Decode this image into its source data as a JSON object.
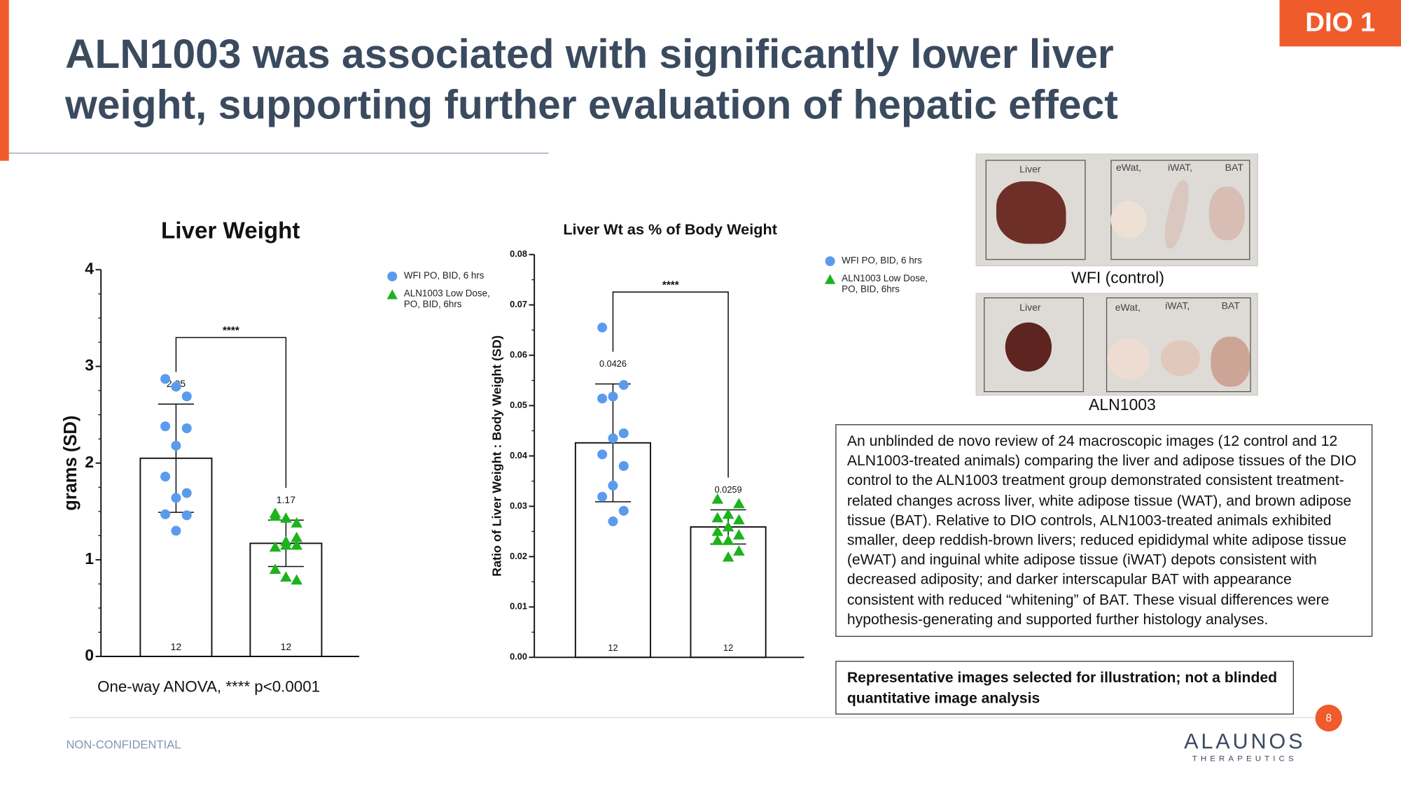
{
  "tag": "DIO 1",
  "title": [
    "ALN1003 was associated with significantly lower liver",
    "weight, supporting further evaluation of hepatic effect"
  ],
  "chart_data": [
    {
      "type": "bar",
      "title": "Liver Weight",
      "y_label": "grams  (SD)",
      "ylim": [
        0,
        4
      ],
      "yticks": [
        0,
        1,
        2,
        3,
        4
      ],
      "minor_ticks": 3,
      "annotation": "****",
      "footnote": "One-way ANOVA, **** p<0.0001",
      "series": [
        {
          "name": "WFI PO, BID, 6 hrs",
          "color": "#5b9bee",
          "marker": "circle",
          "values": [
            2.05
          ],
          "error": [
            0.56
          ],
          "n": [
            12
          ],
          "points": [
            2.87,
            2.69,
            2.79,
            2.38,
            2.36,
            2.18,
            1.86,
            1.69,
            1.64,
            1.47,
            1.46,
            1.3
          ]
        },
        {
          "name": "ALN1003 Low Dose, PO, BID, 6hrs",
          "color": "#1db31d",
          "marker": "triangle",
          "values": [
            1.17
          ],
          "error": [
            0.24
          ],
          "n": [
            12
          ],
          "points": [
            1.45,
            1.38,
            1.43,
            1.48,
            1.23,
            1.19,
            1.13,
            1.15,
            1.15,
            0.9,
            0.79,
            0.82
          ]
        }
      ]
    },
    {
      "type": "bar",
      "title": "Liver Wt as % of Body Weight",
      "y_label": "Ratio of Liver Weight  : Body Weight (SD)",
      "ylim": [
        0,
        0.08
      ],
      "yticks": [
        {
          "value": 0,
          "label": "0.00"
        },
        0.01,
        0.02,
        0.03,
        0.04,
        0.05,
        0.06,
        0.07,
        0.08
      ],
      "minor_ticks": 1,
      "annotation": "****",
      "series": [
        {
          "name": "WFI PO, BID, 6 hrs",
          "color": "#5b9bee",
          "marker": "circle",
          "values": [
            0.0426
          ],
          "error": [
            0.0117
          ],
          "n": [
            12
          ],
          "points": [
            0.0655,
            0.0541,
            0.0518,
            0.0514,
            0.0445,
            0.0435,
            0.0403,
            0.038,
            0.0341,
            0.0319,
            0.0291,
            0.027
          ]
        },
        {
          "name": "ALN1003 Low Dose, PO, BID, 6hrs",
          "color": "#1db31d",
          "marker": "triangle",
          "values": [
            0.0259
          ],
          "error": [
            0.0034
          ],
          "n": [
            12
          ],
          "points": [
            0.0314,
            0.0305,
            0.0284,
            0.0277,
            0.0273,
            0.0259,
            0.025,
            0.0243,
            0.0232,
            0.0232,
            0.0211,
            0.0199
          ]
        }
      ]
    }
  ],
  "images": [
    {
      "caption": "WFI (control)",
      "labels": [
        "Liver",
        "eWat,",
        "iWAT,",
        "BAT"
      ]
    },
    {
      "caption": "ALN1003",
      "labels": [
        "Liver",
        "eWat,",
        "iWAT,",
        "BAT"
      ]
    }
  ],
  "summary": "An unblinded de novo review of 24 macroscopic images (12 control and 12 ALN1003-treated animals) comparing the liver and adipose tissues of the DIO control to the ALN1003 treatment group demonstrated consistent treatment-related changes across liver, white adipose tissue (WAT), and brown adipose tissue (BAT). Relative to DIO controls, ALN1003-treated animals exhibited smaller, deep reddish-brown livers; reduced epididymal white adipose tissue (eWAT) and inguinal white adipose tissue (iWAT) depots consistent with decreased adiposity; and darker interscapular BAT with appearance consistent with reduced “whitening” of BAT. These visual differences were hypothesis-generating and supported further histology analyses.",
  "note": "Representative images selected for illustration; not a blinded quantitative image analysis",
  "footer": "NON-CONFIDENTIAL",
  "page_number": 8,
  "logo": {
    "name": "ALAUNOS",
    "tagline": "THERAPEUTICS"
  }
}
